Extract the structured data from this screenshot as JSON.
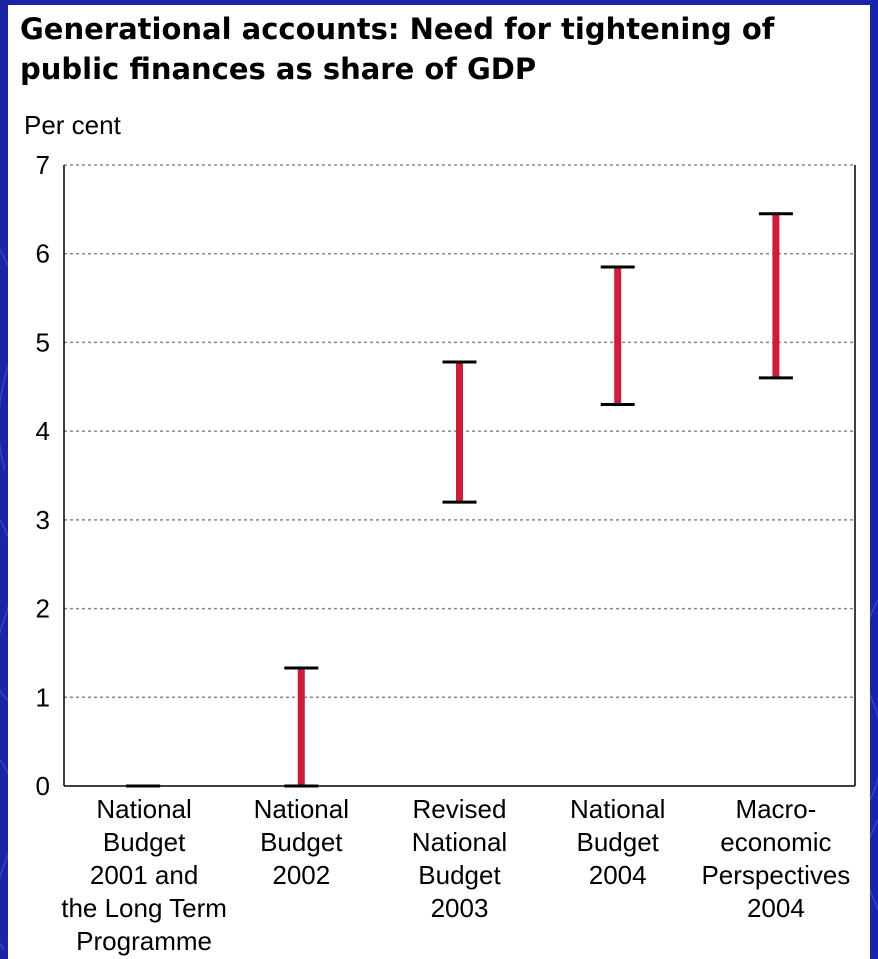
{
  "colors": {
    "background": "#1a24a8",
    "panel": "#ffffff",
    "range_bar": "#d01c3a",
    "gridline": "#888888"
  },
  "chart_data": {
    "type": "range_bar",
    "title_lines": [
      "Generational accounts: Need for tightening of",
      "public finances as share of GDP"
    ],
    "title": "Generational accounts: Need for tightening of public finances as share of GDP",
    "ylabel": "Per cent",
    "xlabel": "",
    "ylim": [
      0,
      7
    ],
    "yticks": [
      0,
      1,
      2,
      3,
      4,
      5,
      6,
      7
    ],
    "grid": true,
    "categories": [
      "National Budget 2001 and the Long Term Programme",
      "National Budget 2002",
      "Revised National Budget 2003",
      "National Budget 2004",
      "Macro-economic Perspectives 2004"
    ],
    "category_label_lines": [
      [
        "National",
        "Budget",
        "2001 and",
        "the Long Term",
        "Programme"
      ],
      [
        "National",
        "Budget",
        "2002"
      ],
      [
        "Revised",
        "National",
        "Budget",
        "2003"
      ],
      [
        "National",
        "Budget",
        "2004"
      ],
      [
        "Macro-",
        "economic",
        "Perspectives",
        "2004"
      ]
    ],
    "series": [
      {
        "low": [
          0,
          0,
          3.2,
          4.3,
          4.6
        ],
        "high": [
          0,
          1.33,
          4.78,
          5.85,
          6.45
        ]
      }
    ]
  }
}
